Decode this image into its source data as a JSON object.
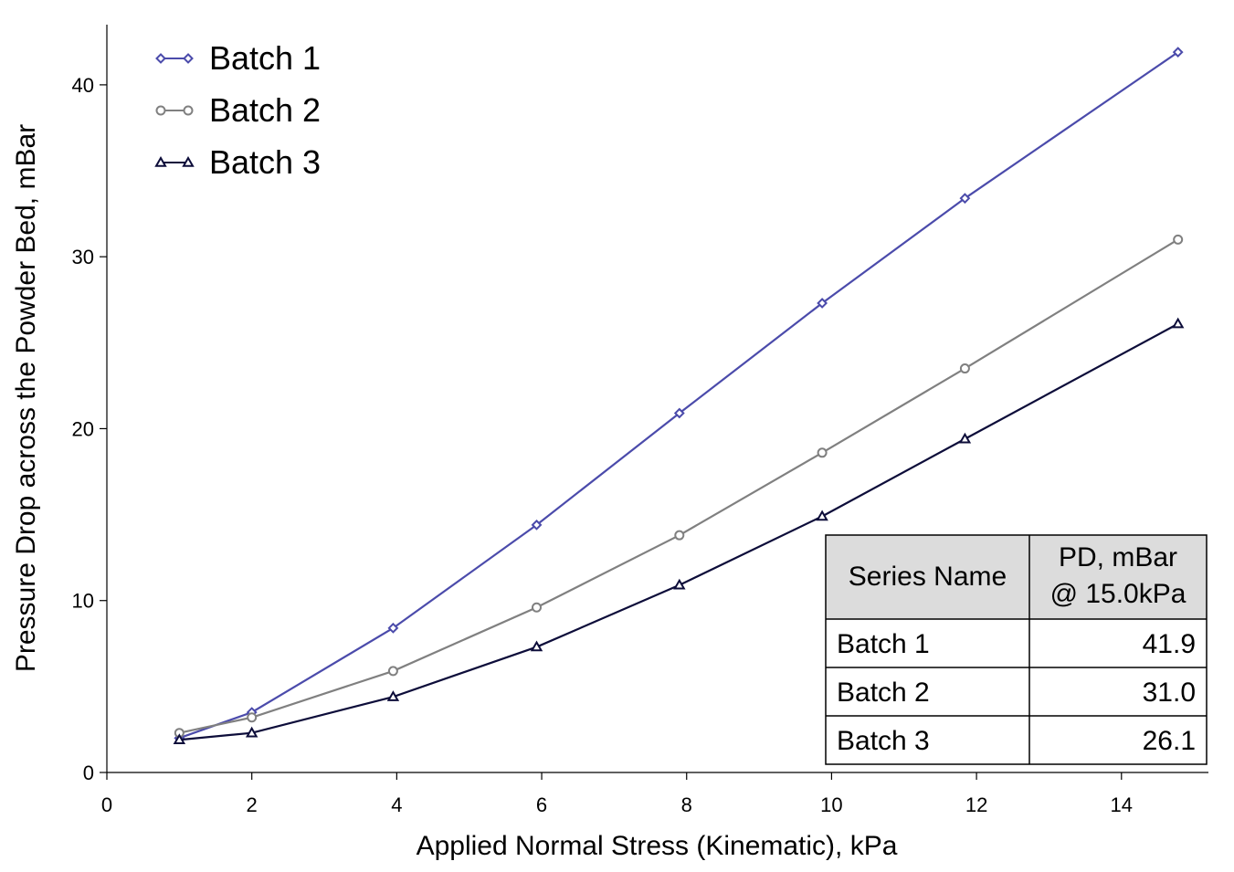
{
  "chart_data": {
    "type": "line",
    "xlabel": "Applied Normal Stress (Kinematic), kPa",
    "ylabel": "Pressure Drop across the Powder Bed, mBar",
    "xlim": [
      0,
      15.2
    ],
    "ylim": [
      0,
      43.5
    ],
    "xticks": [
      0,
      2,
      4,
      6,
      8,
      10,
      12,
      14
    ],
    "yticks": [
      0,
      10,
      20,
      30,
      40
    ],
    "grid": false,
    "legend_position": "top-left",
    "series": [
      {
        "name": "Batch 1",
        "marker": "diamond",
        "color": "#4b4bab",
        "x": [
          1.0,
          2.0,
          3.95,
          5.93,
          7.9,
          9.87,
          11.84,
          14.78
        ],
        "y": [
          2.0,
          3.5,
          8.4,
          14.4,
          20.9,
          27.3,
          33.4,
          41.9
        ]
      },
      {
        "name": "Batch 2",
        "marker": "circle",
        "color": "#808080",
        "x": [
          1.0,
          2.0,
          3.95,
          5.93,
          7.9,
          9.87,
          11.84,
          14.78
        ],
        "y": [
          2.3,
          3.2,
          5.9,
          9.6,
          13.8,
          18.6,
          23.5,
          31.0
        ]
      },
      {
        "name": "Batch 3",
        "marker": "triangle",
        "color": "#0d0d3a",
        "x": [
          1.0,
          2.0,
          3.95,
          5.93,
          7.9,
          9.87,
          11.84,
          14.78
        ],
        "y": [
          1.9,
          2.3,
          4.4,
          7.3,
          10.9,
          14.9,
          19.4,
          26.1
        ]
      }
    ],
    "table": {
      "headers": [
        "Series Name",
        "PD, mBar",
        "@ 15.0kPa"
      ],
      "rows": [
        {
          "name": "Batch 1",
          "value": "41.9"
        },
        {
          "name": "Batch 2",
          "value": "31.0"
        },
        {
          "name": "Batch 3",
          "value": "26.1"
        }
      ]
    }
  }
}
